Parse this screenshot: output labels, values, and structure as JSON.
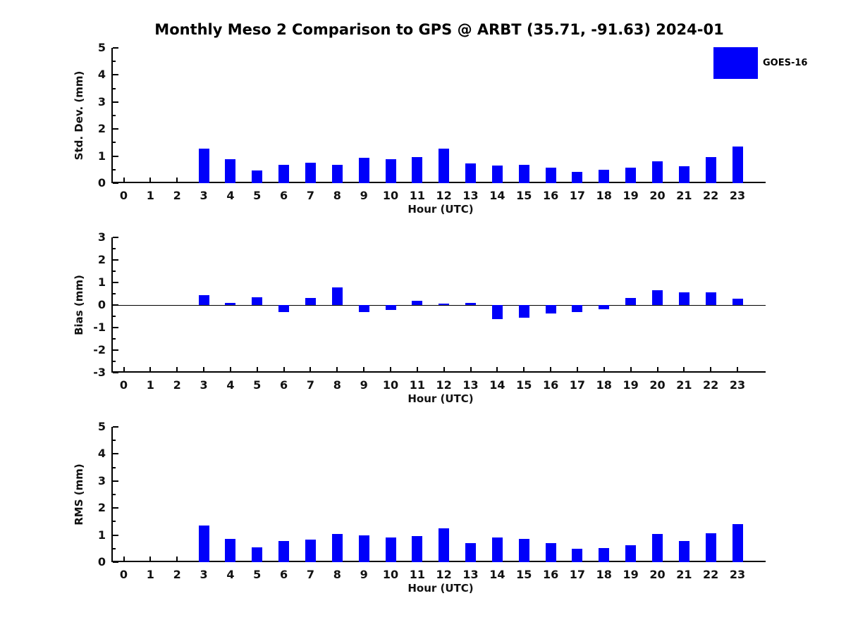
{
  "title": "Monthly Meso 2 Comparison to GPS @ ARBT (35.71, -91.63) 2024-01",
  "xlabel": "Hour (UTC)",
  "legend": {
    "label": "GOES-16",
    "color": "#0000FA"
  },
  "colors": {
    "bar": "#0000FA",
    "axis": "#000000",
    "text": "#111111"
  },
  "hours": [
    "0",
    "1",
    "2",
    "3",
    "4",
    "5",
    "6",
    "7",
    "8",
    "9",
    "10",
    "11",
    "12",
    "13",
    "14",
    "15",
    "16",
    "17",
    "18",
    "19",
    "20",
    "21",
    "22",
    "23"
  ],
  "chart_data": [
    {
      "type": "bar",
      "ylabel": "Std. Dev. (mm)",
      "xlabel": "Hour (UTC)",
      "ylim": [
        0,
        5
      ],
      "yticks": [
        0,
        1,
        2,
        3,
        4,
        5
      ],
      "categories": [
        "0",
        "1",
        "2",
        "3",
        "4",
        "5",
        "6",
        "7",
        "8",
        "9",
        "10",
        "11",
        "12",
        "13",
        "14",
        "15",
        "16",
        "17",
        "18",
        "19",
        "20",
        "21",
        "22",
        "23"
      ],
      "series": [
        {
          "name": "GOES-16",
          "values": [
            null,
            null,
            null,
            1.28,
            0.88,
            0.46,
            0.68,
            0.76,
            0.68,
            0.93,
            0.88,
            0.96,
            1.28,
            0.72,
            0.65,
            0.67,
            0.57,
            0.42,
            0.49,
            0.57,
            0.82,
            0.63,
            0.96,
            1.36
          ]
        }
      ],
      "grid": false,
      "legend_position": "upper-right-outside",
      "zero_line": false
    },
    {
      "type": "bar",
      "ylabel": "Bias (mm)",
      "xlabel": "Hour (UTC)",
      "ylim": [
        -3,
        3
      ],
      "yticks": [
        -3,
        -2,
        -1,
        0,
        1,
        2,
        3
      ],
      "categories": [
        "0",
        "1",
        "2",
        "3",
        "4",
        "5",
        "6",
        "7",
        "8",
        "9",
        "10",
        "11",
        "12",
        "13",
        "14",
        "15",
        "16",
        "17",
        "18",
        "19",
        "20",
        "21",
        "22",
        "23"
      ],
      "series": [
        {
          "name": "GOES-16",
          "values": [
            null,
            null,
            null,
            0.45,
            0.1,
            0.35,
            -0.3,
            0.31,
            0.78,
            -0.32,
            -0.22,
            0.2,
            0.05,
            0.08,
            -0.63,
            -0.55,
            -0.38,
            -0.3,
            -0.2,
            0.3,
            0.65,
            0.55,
            0.55,
            0.28
          ]
        }
      ],
      "grid": false,
      "zero_line": true
    },
    {
      "type": "bar",
      "ylabel": "RMS (mm)",
      "xlabel": "Hour (UTC)",
      "ylim": [
        0,
        5
      ],
      "yticks": [
        0,
        1,
        2,
        3,
        4,
        5
      ],
      "categories": [
        "0",
        "1",
        "2",
        "3",
        "4",
        "5",
        "6",
        "7",
        "8",
        "9",
        "10",
        "11",
        "12",
        "13",
        "14",
        "15",
        "16",
        "17",
        "18",
        "19",
        "20",
        "21",
        "22",
        "23"
      ],
      "series": [
        {
          "name": "GOES-16",
          "values": [
            null,
            null,
            null,
            1.36,
            0.85,
            0.54,
            0.78,
            0.83,
            1.04,
            0.98,
            0.91,
            0.96,
            1.26,
            0.71,
            0.91,
            0.87,
            0.71,
            0.49,
            0.53,
            0.63,
            1.03,
            0.78,
            1.08,
            1.4
          ]
        }
      ],
      "grid": false,
      "zero_line": false
    }
  ]
}
